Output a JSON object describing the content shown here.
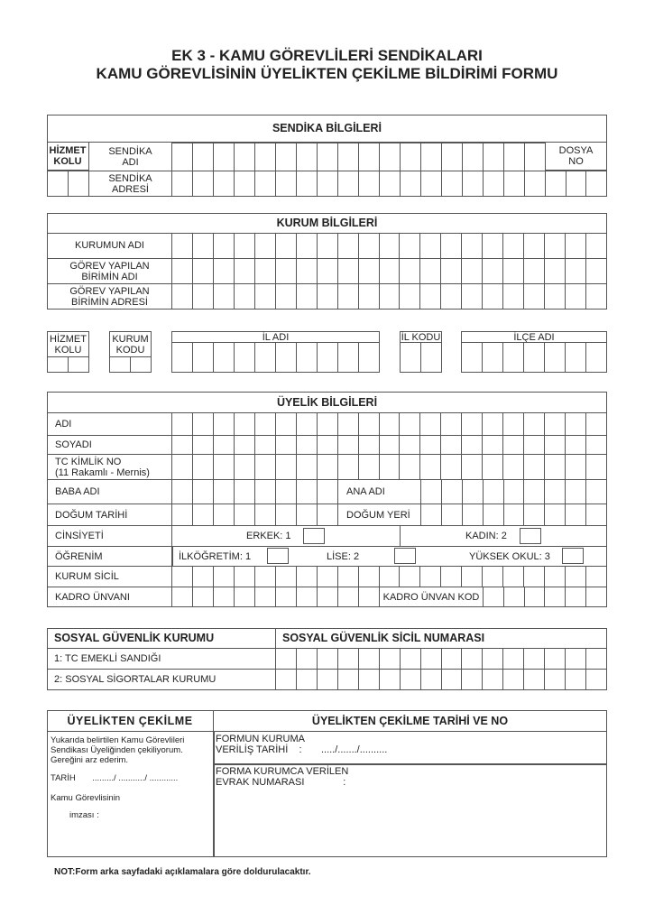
{
  "title": {
    "line1": "EK 3 - KAMU GÖREVLİLERİ SENDİKALARI",
    "line2": "KAMU GÖREVLİSİNİN ÜYELİKTEN ÇEKİLME BİLDİRİMİ FORMU"
  },
  "sendika": {
    "header": "SENDİKA BİLGİLERİ",
    "hizmet_kolu_1": "HİZMET",
    "hizmet_kolu_2": "KOLU",
    "adi_1": "SENDİKA",
    "adi_2": "ADI",
    "adres_1": "SENDİKA",
    "adres_2": "ADRESİ",
    "dosya_1": "DOSYA",
    "dosya_2": "NO"
  },
  "kurum": {
    "header": "KURUM BİLGİLERİ",
    "adi": "KURUMUN ADI",
    "birim_adi_1": "GÖREV YAPILAN",
    "birim_adi_2": "BİRİMİN ADI",
    "birim_adres_1": "GÖREV YAPILAN",
    "birim_adres_2": "BİRİMİN ADRESİ"
  },
  "codes": {
    "hizmet_1": "HİZMET",
    "hizmet_2": "KOLU",
    "kurum_1": "KURUM",
    "kurum_2": "KODU",
    "il_adi": "İL ADI",
    "il_kodu": "İL KODU",
    "ilce_adi": "İLÇE ADI"
  },
  "uyelik": {
    "header": "ÜYELİK BİLGİLERİ",
    "adi": "ADI",
    "soyadi": "SOYADI",
    "tc_1": "TC KİMLİK NO",
    "tc_2": "(11 Rakamlı - Mernis)",
    "baba": "BABA ADI",
    "ana": "ANA ADI",
    "dogum_tarihi": "DOĞUM TARİHİ",
    "dogum_yeri": "DOĞUM YERİ",
    "cinsiyet": "CİNSİYETİ",
    "erkek": "ERKEK: 1",
    "kadin": "KADIN: 2",
    "ogrenim": "ÖĞRENİM",
    "ilkogretim": "İLKÖĞRETİM: 1",
    "lise": "LİSE: 2",
    "yuksek": "YÜKSEK OKUL: 3",
    "sicil": "KURUM SİCİL",
    "kadro": "KADRO ÜNVANI",
    "kadro_kod": "KADRO ÜNVAN KOD"
  },
  "sgk": {
    "header_left": "SOSYAL GÜVENLİK KURUMU",
    "header_right": "SOSYAL GÜVENLİK SİCİL NUMARASI",
    "opt1": "1: TC EMEKLİ SANDIĞI",
    "opt2": "2: SOSYAL SİGORTALAR KURUMU"
  },
  "cekilme": {
    "header_left": "ÜYELİKTEN ÇEKİLME",
    "header_right": "ÜYELİKTEN ÇEKİLME TARİHİ VE NO",
    "text_1": "Yukarıda belirtilen Kamu Görevlileri",
    "text_2": "Sendikası Üyeliğinden çekiliyorum.",
    "text_3": "Gereğini arz ederim.",
    "tarih": "TARİH       ........./ .........../ ............",
    "kamu": "Kamu Görevlisinin",
    "imza": "imzası :",
    "formun_1": "FORMUN KURUMA",
    "formun_2": "VERİLİŞ TARİHİ    :       ...../......./..........",
    "evrak_1": "FORMA KURUMCA VERİLEN",
    "evrak_2": "EVRAK NUMARASI              :"
  },
  "note": "NOT:Form arka sayfadaki açıklamalara göre doldurulacaktır."
}
